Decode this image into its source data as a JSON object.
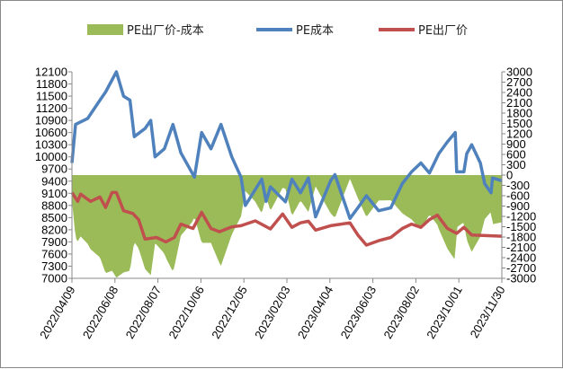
{
  "chart_data": {
    "type": "line",
    "title": "",
    "legend": [
      "PE出厂价-成本",
      "PE成本",
      "PE出厂价"
    ],
    "legend_position": "top",
    "colors": {
      "spread": "#9BBB59",
      "cost": "#4F81BD",
      "price": "#C0504D"
    },
    "x_ticks": [
      "2022/04/09",
      "2022/06/08",
      "2022/08/07",
      "2022/10/06",
      "2022/12/05",
      "2023/02/03",
      "2023/04/04",
      "2023/06/03",
      "2023/08/02",
      "2023/10/01",
      "2023/11/30"
    ],
    "x_unit": "days since 2022/04/09",
    "x_range": [
      0,
      600
    ],
    "left_axis": {
      "range": [
        7000,
        12100
      ],
      "ticks": [
        "12100",
        "11800",
        "11500",
        "11200",
        "10900",
        "10600",
        "10300",
        "10000",
        "9700",
        "9400",
        "9100",
        "8800",
        "8500",
        "8200",
        "7900",
        "7600",
        "7300",
        "7000"
      ]
    },
    "right_axis": {
      "range": [
        -3000,
        3000
      ],
      "ticks": [
        "3000",
        "2700",
        "2400",
        "2100",
        "1800",
        "1500",
        "1200",
        "900",
        "600",
        "300",
        "0",
        "-300",
        "-600",
        "-900",
        "-1200",
        "-1500",
        "-1800",
        "-2100",
        "-2400",
        "-2700",
        "-3000"
      ]
    },
    "series": [
      {
        "name": "PE成本",
        "axis": "left",
        "points": [
          [
            0,
            9850
          ],
          [
            5,
            10800
          ],
          [
            22,
            10950
          ],
          [
            39,
            11400
          ],
          [
            47,
            11600
          ],
          [
            62,
            12100
          ],
          [
            72,
            11500
          ],
          [
            81,
            11400
          ],
          [
            87,
            10500
          ],
          [
            102,
            10700
          ],
          [
            110,
            10900
          ],
          [
            116,
            10000
          ],
          [
            129,
            10200
          ],
          [
            141,
            10800
          ],
          [
            152,
            10100
          ],
          [
            171,
            9500
          ],
          [
            181,
            10600
          ],
          [
            194,
            10200
          ],
          [
            208,
            10800
          ],
          [
            223,
            10000
          ],
          [
            236,
            9500
          ],
          [
            242,
            8800
          ],
          [
            265,
            9450
          ],
          [
            271,
            8900
          ],
          [
            277,
            9260
          ],
          [
            298,
            8890
          ],
          [
            307,
            9450
          ],
          [
            319,
            9110
          ],
          [
            330,
            9480
          ],
          [
            340,
            8520
          ],
          [
            361,
            9410
          ],
          [
            367,
            9560
          ],
          [
            388,
            8480
          ],
          [
            399,
            8740
          ],
          [
            411,
            9040
          ],
          [
            428,
            8670
          ],
          [
            445,
            8740
          ],
          [
            461,
            9340
          ],
          [
            474,
            9630
          ],
          [
            487,
            9850
          ],
          [
            499,
            9600
          ],
          [
            512,
            10080
          ],
          [
            524,
            10370
          ],
          [
            535,
            10600
          ],
          [
            537,
            9630
          ],
          [
            547,
            9630
          ],
          [
            551,
            10080
          ],
          [
            558,
            10300
          ],
          [
            570,
            9850
          ],
          [
            576,
            9340
          ],
          [
            585,
            9110
          ],
          [
            587,
            9480
          ],
          [
            600,
            9410
          ]
        ]
      },
      {
        "name": "PE出厂价",
        "axis": "left",
        "points": [
          [
            0,
            9120
          ],
          [
            8,
            8900
          ],
          [
            12,
            9080
          ],
          [
            26,
            8900
          ],
          [
            39,
            9010
          ],
          [
            47,
            8750
          ],
          [
            56,
            9120
          ],
          [
            62,
            9120
          ],
          [
            72,
            8670
          ],
          [
            85,
            8600
          ],
          [
            93,
            8450
          ],
          [
            102,
            7970
          ],
          [
            118,
            8010
          ],
          [
            131,
            7900
          ],
          [
            143,
            8010
          ],
          [
            152,
            8340
          ],
          [
            169,
            8230
          ],
          [
            181,
            8630
          ],
          [
            194,
            8230
          ],
          [
            206,
            8150
          ],
          [
            223,
            8270
          ],
          [
            236,
            8300
          ],
          [
            256,
            8420
          ],
          [
            277,
            8220
          ],
          [
            294,
            8590
          ],
          [
            307,
            8260
          ],
          [
            319,
            8370
          ],
          [
            330,
            8410
          ],
          [
            340,
            8190
          ],
          [
            361,
            8300
          ],
          [
            388,
            8370
          ],
          [
            399,
            8070
          ],
          [
            411,
            7820
          ],
          [
            428,
            7930
          ],
          [
            445,
            8010
          ],
          [
            461,
            8230
          ],
          [
            474,
            8340
          ],
          [
            487,
            8260
          ],
          [
            499,
            8450
          ],
          [
            510,
            8560
          ],
          [
            524,
            8230
          ],
          [
            537,
            8110
          ],
          [
            547,
            8260
          ],
          [
            558,
            8070
          ],
          [
            600,
            8040
          ]
        ]
      },
      {
        "name": "PE出厂价-成本",
        "axis": "right",
        "type": "area",
        "derived": "PE出厂价 minus PE成本"
      }
    ]
  }
}
